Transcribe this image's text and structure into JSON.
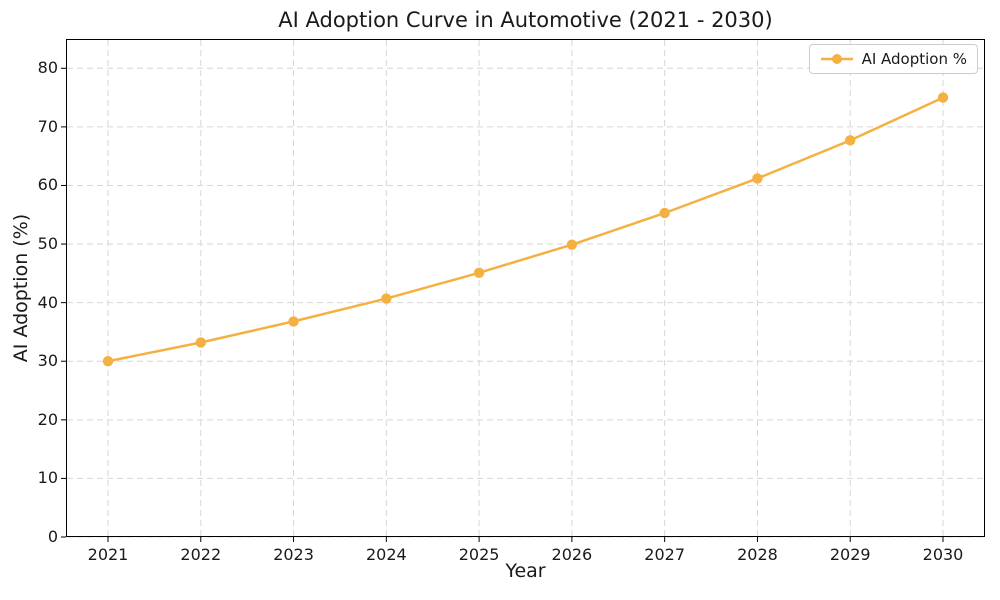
{
  "figure": {
    "title": "AI Adoption Curve in Automotive (2021 - 2030)"
  },
  "chart_data": {
    "type": "line",
    "title": "AI Adoption Curve in Automotive (2021 - 2030)",
    "xlabel": "Year",
    "ylabel": "AI Adoption (%)",
    "categories": [
      "2021",
      "2022",
      "2023",
      "2024",
      "2025",
      "2026",
      "2027",
      "2028",
      "2029",
      "2030"
    ],
    "series": [
      {
        "name": "AI Adoption %",
        "values": [
          30.0,
          33.2,
          36.8,
          40.7,
          45.1,
          49.9,
          55.3,
          61.2,
          67.7,
          75.0
        ],
        "color": "#f5b042",
        "marker": "circle"
      }
    ],
    "ylim": [
      0,
      85
    ],
    "yticks": [
      0,
      10,
      20,
      30,
      40,
      50,
      60,
      70,
      80
    ],
    "grid": true,
    "grid_style": "dashed",
    "grid_color": "#d6d6d6",
    "spine_color": "#000000",
    "legend_position": "upper right"
  }
}
